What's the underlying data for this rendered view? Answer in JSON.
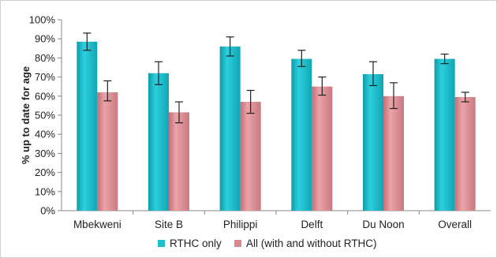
{
  "chart_data": {
    "type": "bar",
    "title": "",
    "xlabel": "",
    "ylabel": "% up to date for age",
    "ylim": [
      0,
      100
    ],
    "yticks": [
      "0%",
      "10%",
      "20%",
      "30%",
      "40%",
      "50%",
      "60%",
      "70%",
      "80%",
      "90%",
      "100%"
    ],
    "categories": [
      "Mbekweni",
      "Site B",
      "Philippi",
      "Delft",
      "Du Noon",
      "Overall"
    ],
    "series": [
      {
        "name": "RTHC only",
        "color": "#1fbfce",
        "values": [
          88.5,
          72,
          86,
          79.5,
          71.5,
          79.5
        ],
        "error_low": [
          84,
          66,
          81,
          75.5,
          65.5,
          77
        ],
        "error_high": [
          93,
          78,
          91,
          84,
          78,
          82
        ]
      },
      {
        "name": "All (with and without RTHC)",
        "color": "#d9888e",
        "values": [
          62,
          51.5,
          57,
          65,
          60,
          59.5
        ],
        "error_low": [
          57.5,
          46,
          51,
          60.5,
          53.5,
          57
        ],
        "error_high": [
          68,
          57,
          63,
          70,
          67,
          62
        ]
      }
    ],
    "legend_position": "bottom",
    "grid": false
  }
}
